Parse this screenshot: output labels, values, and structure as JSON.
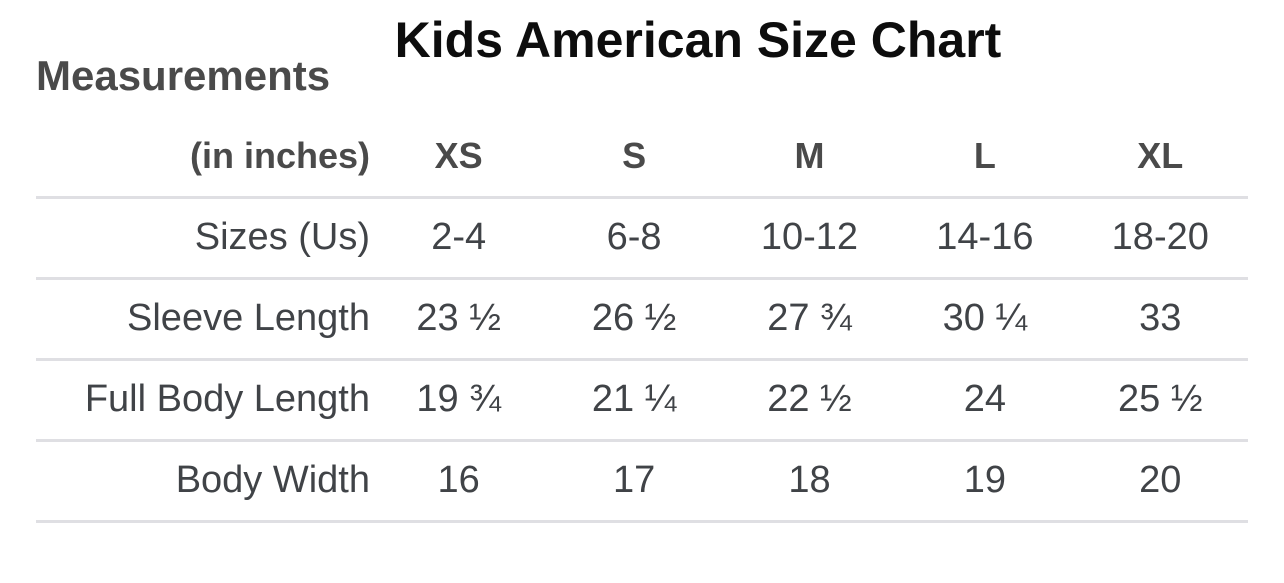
{
  "chart_data": {
    "type": "table",
    "title": "Kids American Size Chart",
    "row_header_title": "Measurements",
    "unit_header": "(in inches)",
    "unit": "inches",
    "columns": [
      "XS",
      "S",
      "M",
      "L",
      "XL"
    ],
    "rows": [
      {
        "label": "Sizes (Us)",
        "values": [
          "2-4",
          "6-8",
          "10-12",
          "14-16",
          "18-20"
        ]
      },
      {
        "label": "Sleeve Length",
        "values": [
          "23 ½",
          "26 ½",
          "27 ¾",
          "30 ¼",
          "33"
        ],
        "values_numeric": [
          23.5,
          26.5,
          27.75,
          30.25,
          33
        ]
      },
      {
        "label": "Full Body Length",
        "values": [
          "19 ¾",
          "21 ¼",
          "22 ½",
          "24",
          "25 ½"
        ],
        "values_numeric": [
          19.75,
          21.25,
          22.5,
          24,
          25.5
        ]
      },
      {
        "label": "Body Width",
        "values": [
          "16",
          "17",
          "18",
          "19",
          "20"
        ],
        "values_numeric": [
          16,
          17,
          18,
          19,
          20
        ]
      }
    ]
  },
  "colors": {
    "background": "#ffffff",
    "title_text": "#0d0d0d",
    "header_text": "#4a4a4a",
    "body_text": "#404347",
    "divider": "#dfdfe3"
  }
}
